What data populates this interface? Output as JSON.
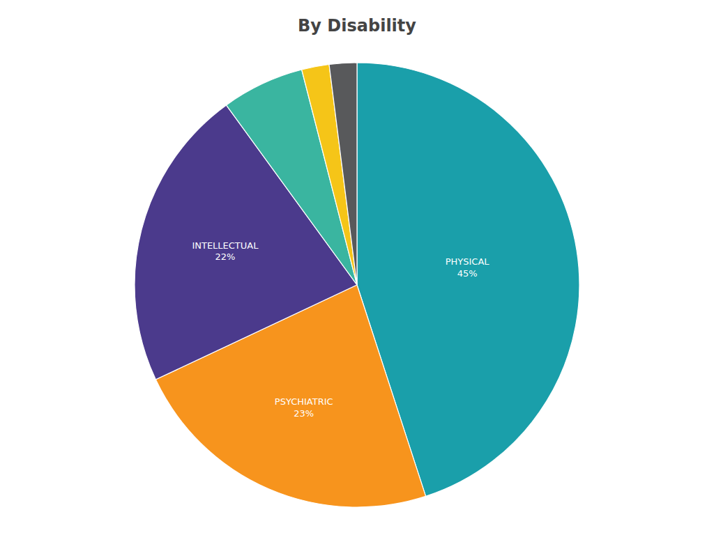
{
  "chart_data": {
    "type": "pie",
    "title": "By Disability",
    "categories": [
      "PHYSICAL",
      "PSYCHIATRIC",
      "INTELLECTUAL",
      null,
      null,
      null
    ],
    "values": [
      45,
      23,
      22,
      6,
      2,
      2
    ],
    "value_labels": [
      "45%",
      "23%",
      "22%",
      null,
      null,
      null
    ],
    "data_labels": true,
    "colors": [
      "#1a9faa",
      "#f7941d",
      "#4b3a8c",
      "#3ab5a0",
      "#f5c518",
      "#58595b"
    ]
  }
}
